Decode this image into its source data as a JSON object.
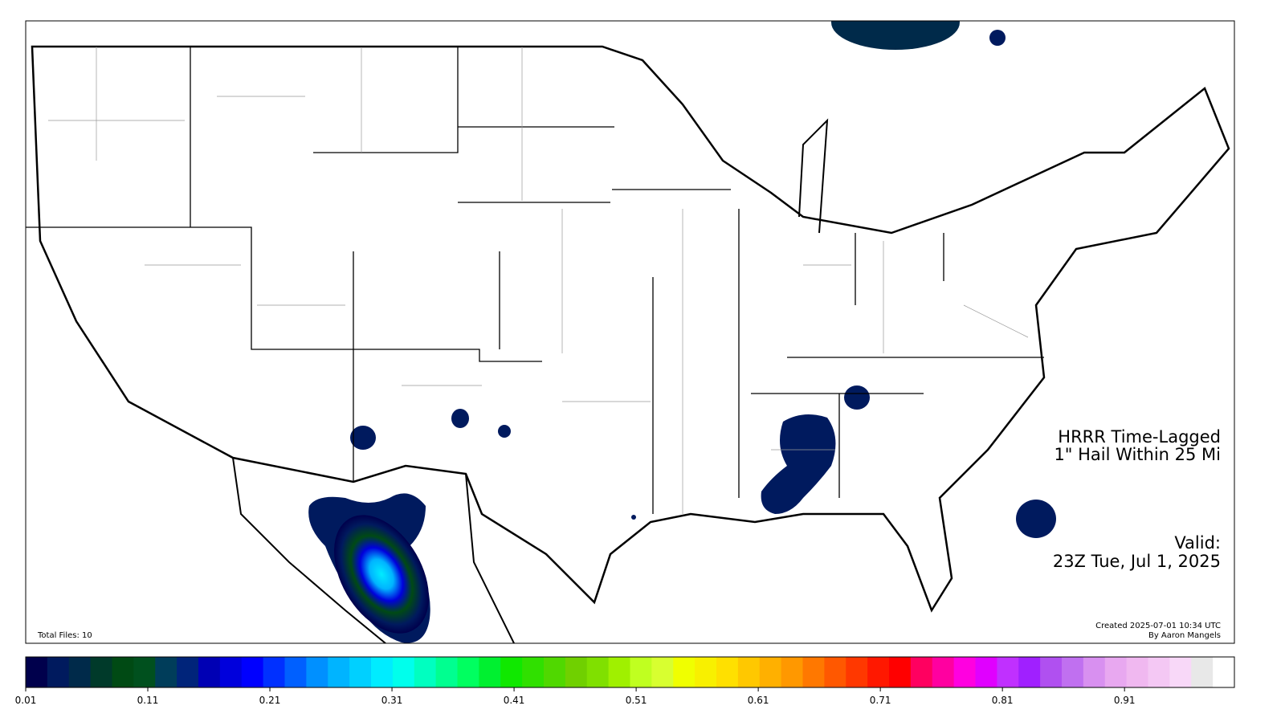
{
  "map": {
    "title_line1": "HRRR Time-Lagged",
    "title_line2": "1\" Hail Within 25 Mi",
    "valid_label": "Valid:",
    "valid_time": "23Z Tue, Jul 1, 2025",
    "created": "Created 2025-07-01 10:34 UTC",
    "author": "By Aaron Mangels",
    "total_files": "Total Files: 10"
  },
  "colorbar": {
    "lim": [
      0.01,
      1.0
    ],
    "ticks": [
      0.01,
      0.11,
      0.21,
      0.31,
      0.41,
      0.51,
      0.61,
      0.71,
      0.81,
      0.91
    ],
    "colors": [
      "#00004c",
      "#001a5e",
      "#002a4a",
      "#003a2a",
      "#004a14",
      "#00501e",
      "#003d5a",
      "#00247a",
      "#0000b4",
      "#0000dc",
      "#0000ff",
      "#0030ff",
      "#0060ff",
      "#0090ff",
      "#00b4ff",
      "#00d0ff",
      "#00ecff",
      "#00ffec",
      "#00ffc0",
      "#00ff90",
      "#00ff60",
      "#00f030",
      "#10e800",
      "#30e000",
      "#50d800",
      "#70d000",
      "#80e000",
      "#a0f000",
      "#c0ff20",
      "#d8ff30",
      "#f0ff00",
      "#f8f000",
      "#ffe000",
      "#ffc800",
      "#ffb000",
      "#ff9800",
      "#ff7800",
      "#ff5800",
      "#ff3800",
      "#ff1800",
      "#ff0000",
      "#ff0060",
      "#ff00a0",
      "#ff00e0",
      "#e000ff",
      "#c030ff",
      "#a020ff",
      "#b050f0",
      "#c070f0",
      "#d890f0",
      "#e8a8f0",
      "#f0b8f0",
      "#f4c8f4",
      "#f8d8f8",
      "#e8e8e8",
      "#ffffff"
    ]
  }
}
